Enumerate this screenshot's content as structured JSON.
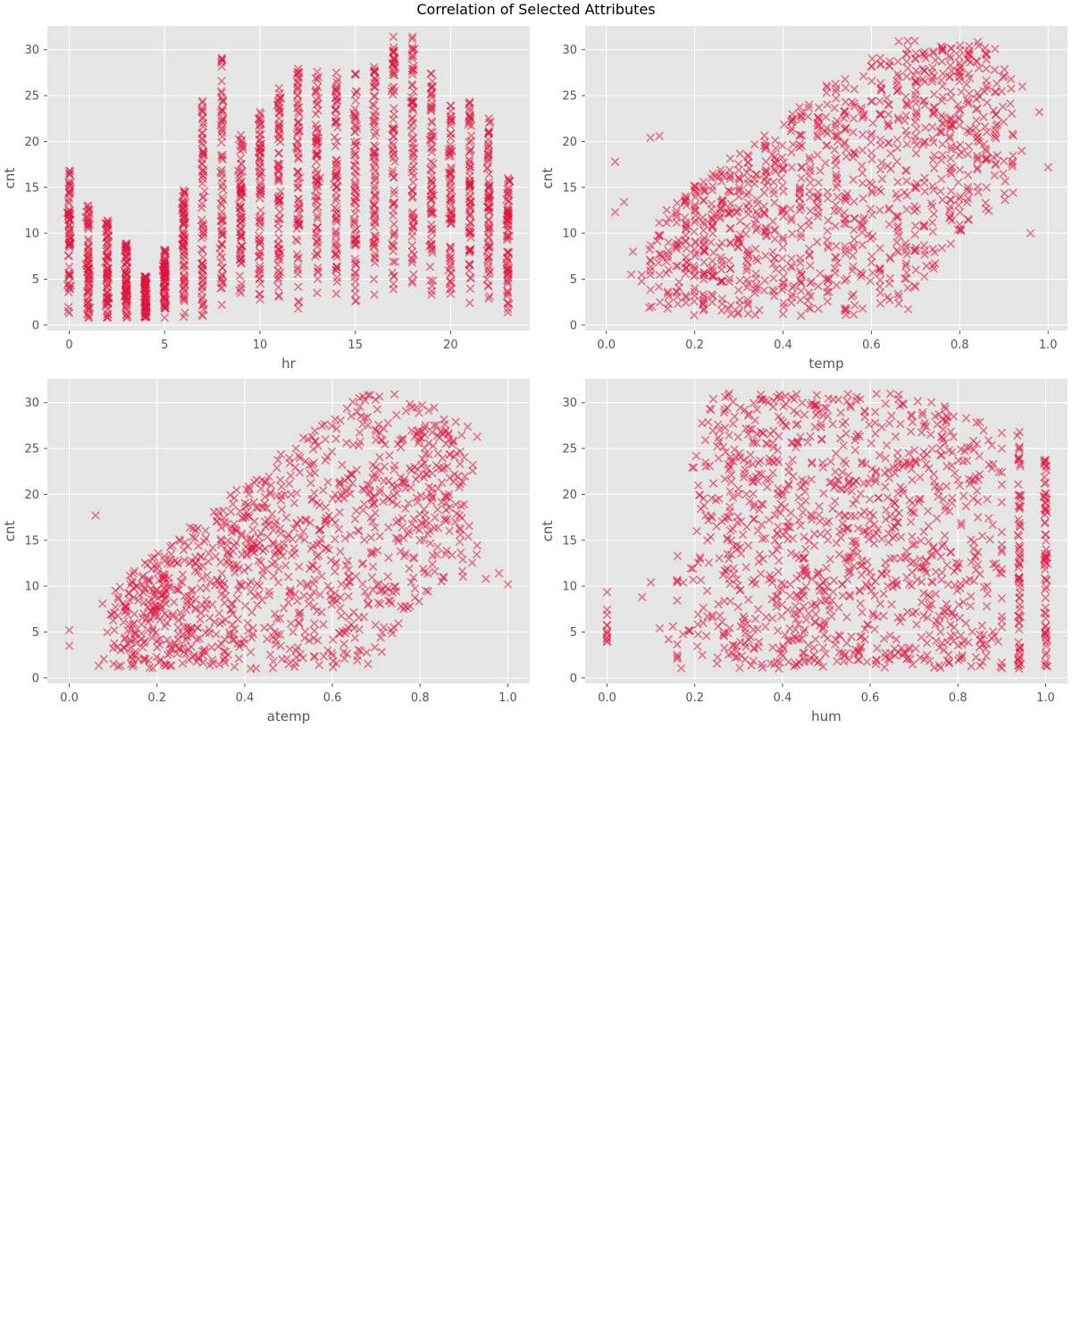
{
  "figure": {
    "title": "Correlation of Selected Attributes",
    "background": "#ffffff",
    "panel_background": "#e5e5e5",
    "grid_color": "#ffffff",
    "tick_color": "#555555"
  },
  "chart_data": [
    {
      "type": "scatter",
      "xlabel": "hr",
      "ylabel": "cnt",
      "x_kind": "hour",
      "xlim": [
        -1.15,
        24.15
      ],
      "ylim": [
        -0.6,
        32.6
      ],
      "xticks": [
        0,
        5,
        10,
        15,
        20
      ],
      "xtick_labels": [
        "0",
        "5",
        "10",
        "15",
        "20"
      ],
      "yticks": [
        0,
        5,
        10,
        15,
        20,
        25,
        30
      ],
      "ytick_labels": [
        "0",
        "5",
        "10",
        "15",
        "20",
        "25",
        "30"
      ],
      "marker": "x",
      "color": "#dc143c",
      "hour_ranges": [
        {
          "x": 0,
          "min": 1.3,
          "max": 16.8
        },
        {
          "x": 1,
          "min": 0.8,
          "max": 13.0
        },
        {
          "x": 2,
          "min": 0.8,
          "max": 11.4
        },
        {
          "x": 3,
          "min": 0.8,
          "max": 8.9
        },
        {
          "x": 4,
          "min": 0.8,
          "max": 5.3
        },
        {
          "x": 5,
          "min": 0.8,
          "max": 8.2
        },
        {
          "x": 6,
          "min": 0.9,
          "max": 14.7
        },
        {
          "x": 7,
          "min": 1.0,
          "max": 24.4
        },
        {
          "x": 8,
          "min": 2.2,
          "max": 29.1
        },
        {
          "x": 9,
          "min": 3.5,
          "max": 20.7
        },
        {
          "x": 10,
          "min": 2.8,
          "max": 23.2
        },
        {
          "x": 11,
          "min": 3.1,
          "max": 25.8
        },
        {
          "x": 12,
          "min": 1.8,
          "max": 27.9
        },
        {
          "x": 13,
          "min": 3.5,
          "max": 27.6
        },
        {
          "x": 14,
          "min": 3.4,
          "max": 27.5
        },
        {
          "x": 15,
          "min": 2.6,
          "max": 27.4
        },
        {
          "x": 16,
          "min": 3.3,
          "max": 28.1
        },
        {
          "x": 17,
          "min": 3.9,
          "max": 31.4
        },
        {
          "x": 18,
          "min": 4.6,
          "max": 31.4
        },
        {
          "x": 19,
          "min": 3.3,
          "max": 27.4
        },
        {
          "x": 20,
          "min": 3.4,
          "max": 23.9
        },
        {
          "x": 21,
          "min": 2.4,
          "max": 24.3
        },
        {
          "x": 22,
          "min": 2.9,
          "max": 22.5
        },
        {
          "x": 23,
          "min": 1.4,
          "max": 16.0
        }
      ]
    },
    {
      "type": "scatter",
      "xlabel": "temp",
      "ylabel": "cnt",
      "x_kind": "temp",
      "xlim": [
        -0.048,
        1.044
      ],
      "ylim": [
        -0.6,
        32.6
      ],
      "xticks": [
        0.0,
        0.2,
        0.4,
        0.6,
        0.8,
        1.0
      ],
      "xtick_labels": [
        "0.0",
        "0.2",
        "0.4",
        "0.6",
        "0.8",
        "1.0"
      ],
      "yticks": [
        0,
        5,
        10,
        15,
        20,
        25,
        30
      ],
      "ytick_labels": [
        "0",
        "5",
        "10",
        "15",
        "20",
        "25",
        "30"
      ],
      "marker": "x",
      "color": "#dc143c"
    },
    {
      "type": "scatter",
      "xlabel": "atemp",
      "ylabel": "cnt",
      "x_kind": "atemp",
      "xlim": [
        -0.05,
        1.05
      ],
      "ylim": [
        -0.6,
        32.6
      ],
      "xticks": [
        0.0,
        0.2,
        0.4,
        0.6,
        0.8,
        1.0
      ],
      "xtick_labels": [
        "0.0",
        "0.2",
        "0.4",
        "0.6",
        "0.8",
        "1.0"
      ],
      "yticks": [
        0,
        5,
        10,
        15,
        20,
        25,
        30
      ],
      "ytick_labels": [
        "0",
        "5",
        "10",
        "15",
        "20",
        "25",
        "30"
      ],
      "marker": "x",
      "color": "#dc143c"
    },
    {
      "type": "scatter",
      "xlabel": "hum",
      "ylabel": "cnt",
      "x_kind": "hum",
      "xlim": [
        -0.05,
        1.05
      ],
      "ylim": [
        -0.6,
        32.6
      ],
      "xticks": [
        0.0,
        0.2,
        0.4,
        0.6,
        0.8,
        1.0
      ],
      "xtick_labels": [
        "0.0",
        "0.2",
        "0.4",
        "0.6",
        "0.8",
        "1.0"
      ],
      "yticks": [
        0,
        5,
        10,
        15,
        20,
        25,
        30
      ],
      "ytick_labels": [
        "0",
        "5",
        "10",
        "15",
        "20",
        "25",
        "30"
      ],
      "marker": "x",
      "color": "#dc143c"
    }
  ]
}
